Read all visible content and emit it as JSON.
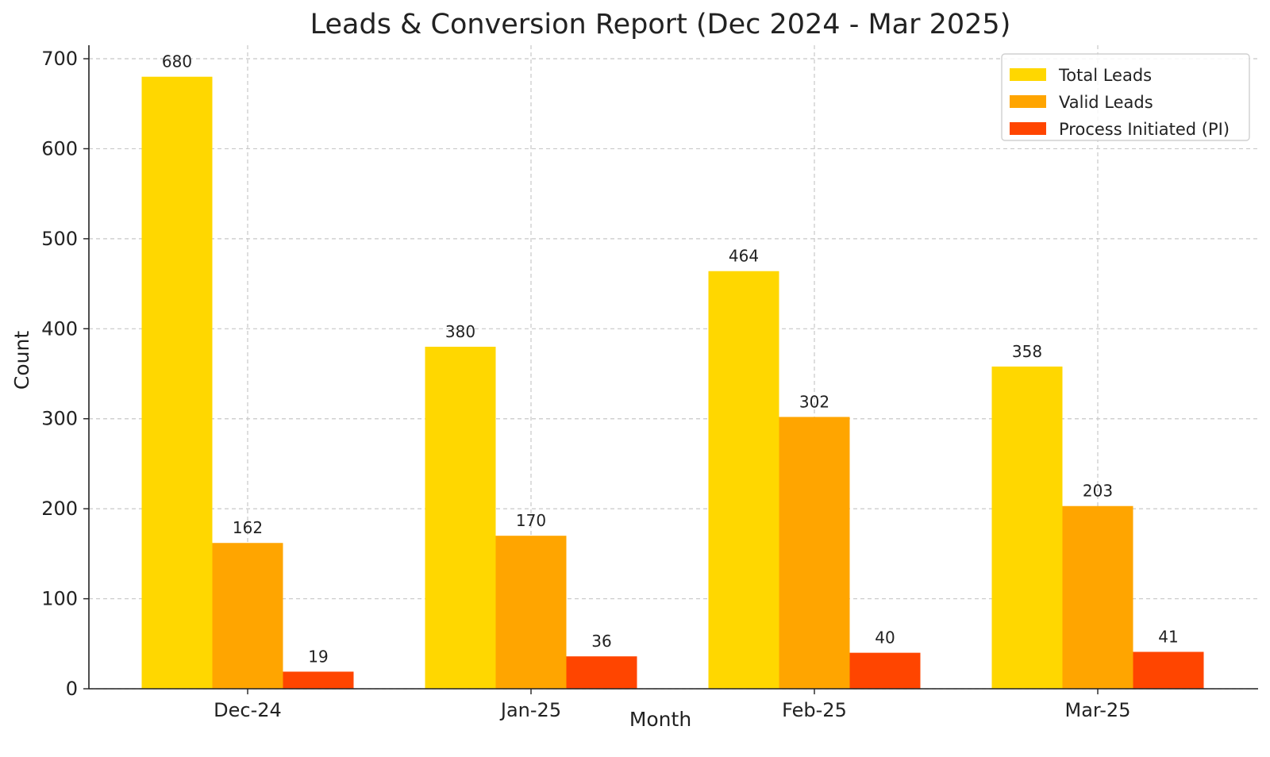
{
  "chart_data": {
    "type": "bar",
    "title": "Leads & Conversion Report (Dec 2024 - Mar 2025)",
    "xlabel": "Month",
    "ylabel": "Count",
    "categories": [
      "Dec-24",
      "Jan-25",
      "Feb-25",
      "Mar-25"
    ],
    "ylim": [
      0,
      715
    ],
    "yticks": [
      0,
      100,
      200,
      300,
      400,
      500,
      600,
      700
    ],
    "grid": true,
    "legend_position": "top-right",
    "series": [
      {
        "name": "Total Leads",
        "color": "#FFD700",
        "values": [
          680,
          380,
          464,
          358
        ]
      },
      {
        "name": "Valid Leads",
        "color": "#FFA500",
        "values": [
          162,
          170,
          302,
          203
        ]
      },
      {
        "name": "Process Initiated (PI)",
        "color": "#FF4500",
        "values": [
          19,
          36,
          40,
          41
        ]
      }
    ]
  }
}
